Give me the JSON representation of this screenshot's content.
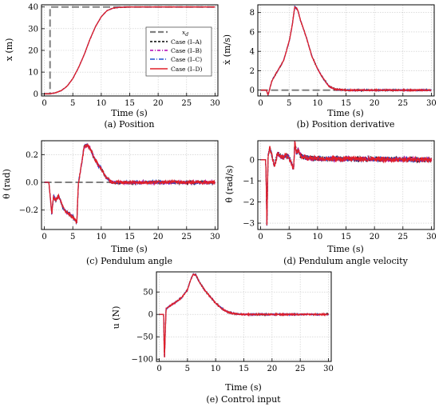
{
  "figure": {
    "background": "#ffffff"
  },
  "legend": {
    "entries": [
      {
        "label": "x_d",
        "color": "#808080",
        "dash": "long"
      },
      {
        "label": "Case (I–A)",
        "color": "#000000",
        "dash": "dashed"
      },
      {
        "label": "Case (I–B)",
        "color": "#b000b0",
        "dash": "dashdot"
      },
      {
        "label": "Case (I–C)",
        "color": "#1f4fd0",
        "dash": "dashdot"
      },
      {
        "label": "Case (I–D)",
        "color": "#e0202a",
        "dash": "solid"
      }
    ]
  },
  "chart_data": [
    {
      "id": "a",
      "type": "line",
      "caption": "(a) Position",
      "xlabel": "Time (s)",
      "ylabel": "x (m)",
      "xlim": [
        -0.5,
        30.5
      ],
      "ylim": [
        -1,
        41
      ],
      "xticks": [
        0,
        5,
        10,
        15,
        20,
        25,
        30
      ],
      "yticks": [
        0,
        10,
        20,
        30,
        40
      ],
      "reference": {
        "name": "x_d",
        "x": [
          0,
          1,
          1,
          30
        ],
        "y": [
          0,
          0,
          40,
          40
        ]
      },
      "series": [
        {
          "name": "Case (I–D)",
          "x": [
            0,
            1,
            2,
            3,
            4,
            5,
            6,
            7,
            8,
            9,
            10,
            11,
            12,
            13,
            15,
            20,
            30
          ],
          "y": [
            0,
            0,
            0.5,
            1.5,
            3.5,
            7,
            12,
            18,
            25,
            31,
            35.5,
            38.3,
            39.4,
            39.8,
            40,
            40,
            40
          ]
        }
      ]
    },
    {
      "id": "b",
      "type": "line",
      "caption": "(b) Position derivative",
      "xlabel": "Time (s)",
      "ylabel": "ẋ (m/s)",
      "xlim": [
        -0.5,
        30.5
      ],
      "ylim": [
        -0.6,
        8.8
      ],
      "xticks": [
        0,
        5,
        10,
        15,
        20,
        25,
        30
      ],
      "yticks": [
        0,
        2,
        4,
        6,
        8
      ],
      "reference": {
        "x": [
          0,
          30
        ],
        "y": [
          0,
          0
        ]
      },
      "series": [
        {
          "name": "Case (I–D)",
          "x": [
            0,
            1,
            1.3,
            2,
            3,
            4,
            5,
            5.5,
            6,
            6.5,
            7,
            8,
            9,
            10,
            11,
            12,
            13,
            15,
            20,
            30
          ],
          "y": [
            0,
            0,
            -0.5,
            1.0,
            2.0,
            3.0,
            5.0,
            6.5,
            8.6,
            8.3,
            7.2,
            5.5,
            3.5,
            2.2,
            1.2,
            0.4,
            0.1,
            0,
            0,
            0
          ]
        }
      ]
    },
    {
      "id": "c",
      "type": "line",
      "caption": "(c) Pendulum angle",
      "xlabel": "Time (s)",
      "ylabel": "θ (rad)",
      "xlim": [
        -0.5,
        30.5
      ],
      "ylim": [
        -0.34,
        0.3
      ],
      "xticks": [
        0,
        5,
        10,
        15,
        20,
        25,
        30
      ],
      "yticks": [
        -0.2,
        0.0,
        0.2
      ],
      "reference": {
        "x": [
          0,
          30
        ],
        "y": [
          0,
          0
        ]
      },
      "series": [
        {
          "name": "Case (I–D)",
          "x": [
            0,
            0.8,
            1.3,
            1.6,
            2,
            2.5,
            3,
            3.5,
            4,
            4.5,
            5,
            5.7,
            6,
            6.5,
            7,
            7.5,
            8,
            8.5,
            9,
            9.5,
            10,
            10.5,
            11,
            11.5,
            12,
            13,
            14,
            15,
            20,
            30
          ],
          "y": [
            0,
            0,
            -0.23,
            -0.1,
            -0.13,
            -0.1,
            -0.15,
            -0.2,
            -0.22,
            -0.23,
            -0.25,
            -0.29,
            0.0,
            0.12,
            0.26,
            0.27,
            0.25,
            0.2,
            0.16,
            0.12,
            0.1,
            0.06,
            0.03,
            0.01,
            0.0,
            0,
            0,
            0,
            0,
            0
          ]
        }
      ]
    },
    {
      "id": "d",
      "type": "line",
      "caption": "(d) Pendulum angle velocity",
      "xlabel": "Time (s)",
      "ylabel": "θ̇ (rad/s)",
      "xlim": [
        -0.5,
        30.5
      ],
      "ylim": [
        -3.3,
        0.9
      ],
      "xticks": [
        0,
        5,
        10,
        15,
        20,
        25,
        30
      ],
      "yticks": [
        -3,
        -2,
        -1,
        0
      ],
      "series": [
        {
          "name": "Case (I–D)",
          "x": [
            0,
            0.9,
            1.1,
            1.3,
            1.6,
            2,
            2.4,
            3,
            3.5,
            4,
            4.5,
            5,
            5.8,
            6,
            6.3,
            6.6,
            7,
            8,
            10,
            30
          ],
          "y": [
            0,
            0,
            -3.1,
            0.2,
            0.55,
            0.2,
            -0.3,
            0.3,
            0.15,
            0.1,
            0.2,
            0.1,
            -0.4,
            0.8,
            0.3,
            0.5,
            0.2,
            0.1,
            0.05,
            0
          ]
        }
      ]
    },
    {
      "id": "e",
      "type": "line",
      "caption": "(e) Control input",
      "xlabel": "Time (s)",
      "ylabel": "u (N)",
      "xlim": [
        -0.5,
        30.5
      ],
      "ylim": [
        -105,
        95
      ],
      "xticks": [
        0,
        5,
        10,
        15,
        20,
        25,
        30
      ],
      "yticks": [
        -100,
        -50,
        0,
        50
      ],
      "series": [
        {
          "name": "Case (I–D)",
          "x": [
            0,
            0.8,
            0.9,
            1.2,
            1.5,
            2,
            3,
            4,
            5,
            5.5,
            6,
            6.5,
            7,
            8,
            9,
            10,
            11,
            12,
            13,
            15,
            20,
            30
          ],
          "y": [
            0,
            0,
            -105,
            12,
            15,
            20,
            28,
            38,
            55,
            75,
            90,
            88,
            75,
            55,
            40,
            25,
            14,
            6,
            2,
            0,
            0,
            0
          ]
        }
      ]
    }
  ]
}
